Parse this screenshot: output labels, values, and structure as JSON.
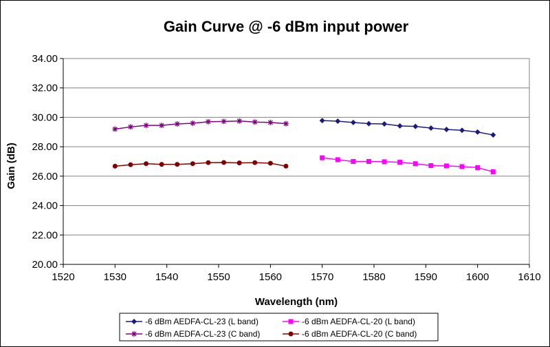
{
  "chart_data": {
    "type": "line",
    "title": "Gain Curve @ -6 dBm input power",
    "xlabel": "Wavelength (nm)",
    "ylabel": "Gain (dB)",
    "xlim": [
      1520,
      1610
    ],
    "ylim": [
      20,
      34
    ],
    "x_ticks": [
      "1520",
      "1530",
      "1540",
      "1550",
      "1560",
      "1570",
      "1580",
      "1590",
      "1600",
      "1610"
    ],
    "y_ticks": [
      "20.00",
      "22.00",
      "24.00",
      "26.00",
      "28.00",
      "30.00",
      "32.00",
      "34.00"
    ],
    "grid": "horizontal major",
    "legend_position": "bottom",
    "series": [
      {
        "name": "-6 dBm AEDFA-CL-23 (L band)",
        "color": "#1a1a80",
        "marker": "diamond",
        "x": [
          1570,
          1573,
          1576,
          1579,
          1582,
          1585,
          1588,
          1591,
          1594,
          1597,
          1600,
          1603
        ],
        "y": [
          29.78,
          29.74,
          29.65,
          29.57,
          29.55,
          29.42,
          29.38,
          29.27,
          29.18,
          29.12,
          29.0,
          28.8
        ]
      },
      {
        "name": "-6 dBm AEDFA-CL-20 (L band)",
        "color": "#ff00ff",
        "marker": "square",
        "x": [
          1570,
          1573,
          1576,
          1579,
          1582,
          1585,
          1588,
          1591,
          1594,
          1597,
          1600,
          1603
        ],
        "y": [
          27.25,
          27.12,
          27.0,
          27.0,
          26.98,
          26.95,
          26.85,
          26.72,
          26.7,
          26.65,
          26.58,
          26.3
        ]
      },
      {
        "name": "-6 dBm AEDFA-CL-23 (C band)",
        "color": "#800080",
        "marker": "star",
        "x": [
          1530,
          1533,
          1536,
          1539,
          1542,
          1545,
          1548,
          1551,
          1554,
          1557,
          1560,
          1563
        ],
        "y": [
          29.2,
          29.35,
          29.45,
          29.45,
          29.55,
          29.6,
          29.7,
          29.72,
          29.75,
          29.68,
          29.65,
          29.57
        ]
      },
      {
        "name": "-6 dBm AEDFA-CL-20 (C band)",
        "color": "#800000",
        "marker": "circle",
        "x": [
          1530,
          1533,
          1536,
          1539,
          1542,
          1545,
          1548,
          1551,
          1554,
          1557,
          1560,
          1563
        ],
        "y": [
          26.68,
          26.78,
          26.85,
          26.8,
          26.8,
          26.85,
          26.92,
          26.93,
          26.9,
          26.92,
          26.88,
          26.68
        ]
      }
    ]
  }
}
